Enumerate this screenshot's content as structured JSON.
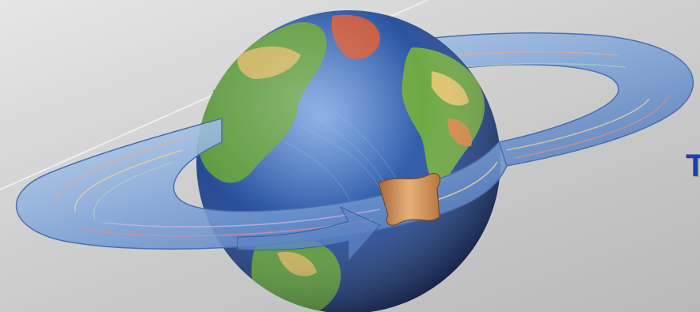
{
  "visible_text": {
    "partial_heading": "T"
  },
  "illustration": {
    "globe": "earth-globe",
    "ring": "satellite-orbit-ring",
    "orbit_arrow": "orbit-direction-arrow",
    "satellite": "satellite-ribbon"
  },
  "colors": {
    "heading": "#1f3fb3",
    "ocean": "#2c4f9a",
    "ring": "#7fa4d6",
    "satellite": "#c98a4c"
  }
}
